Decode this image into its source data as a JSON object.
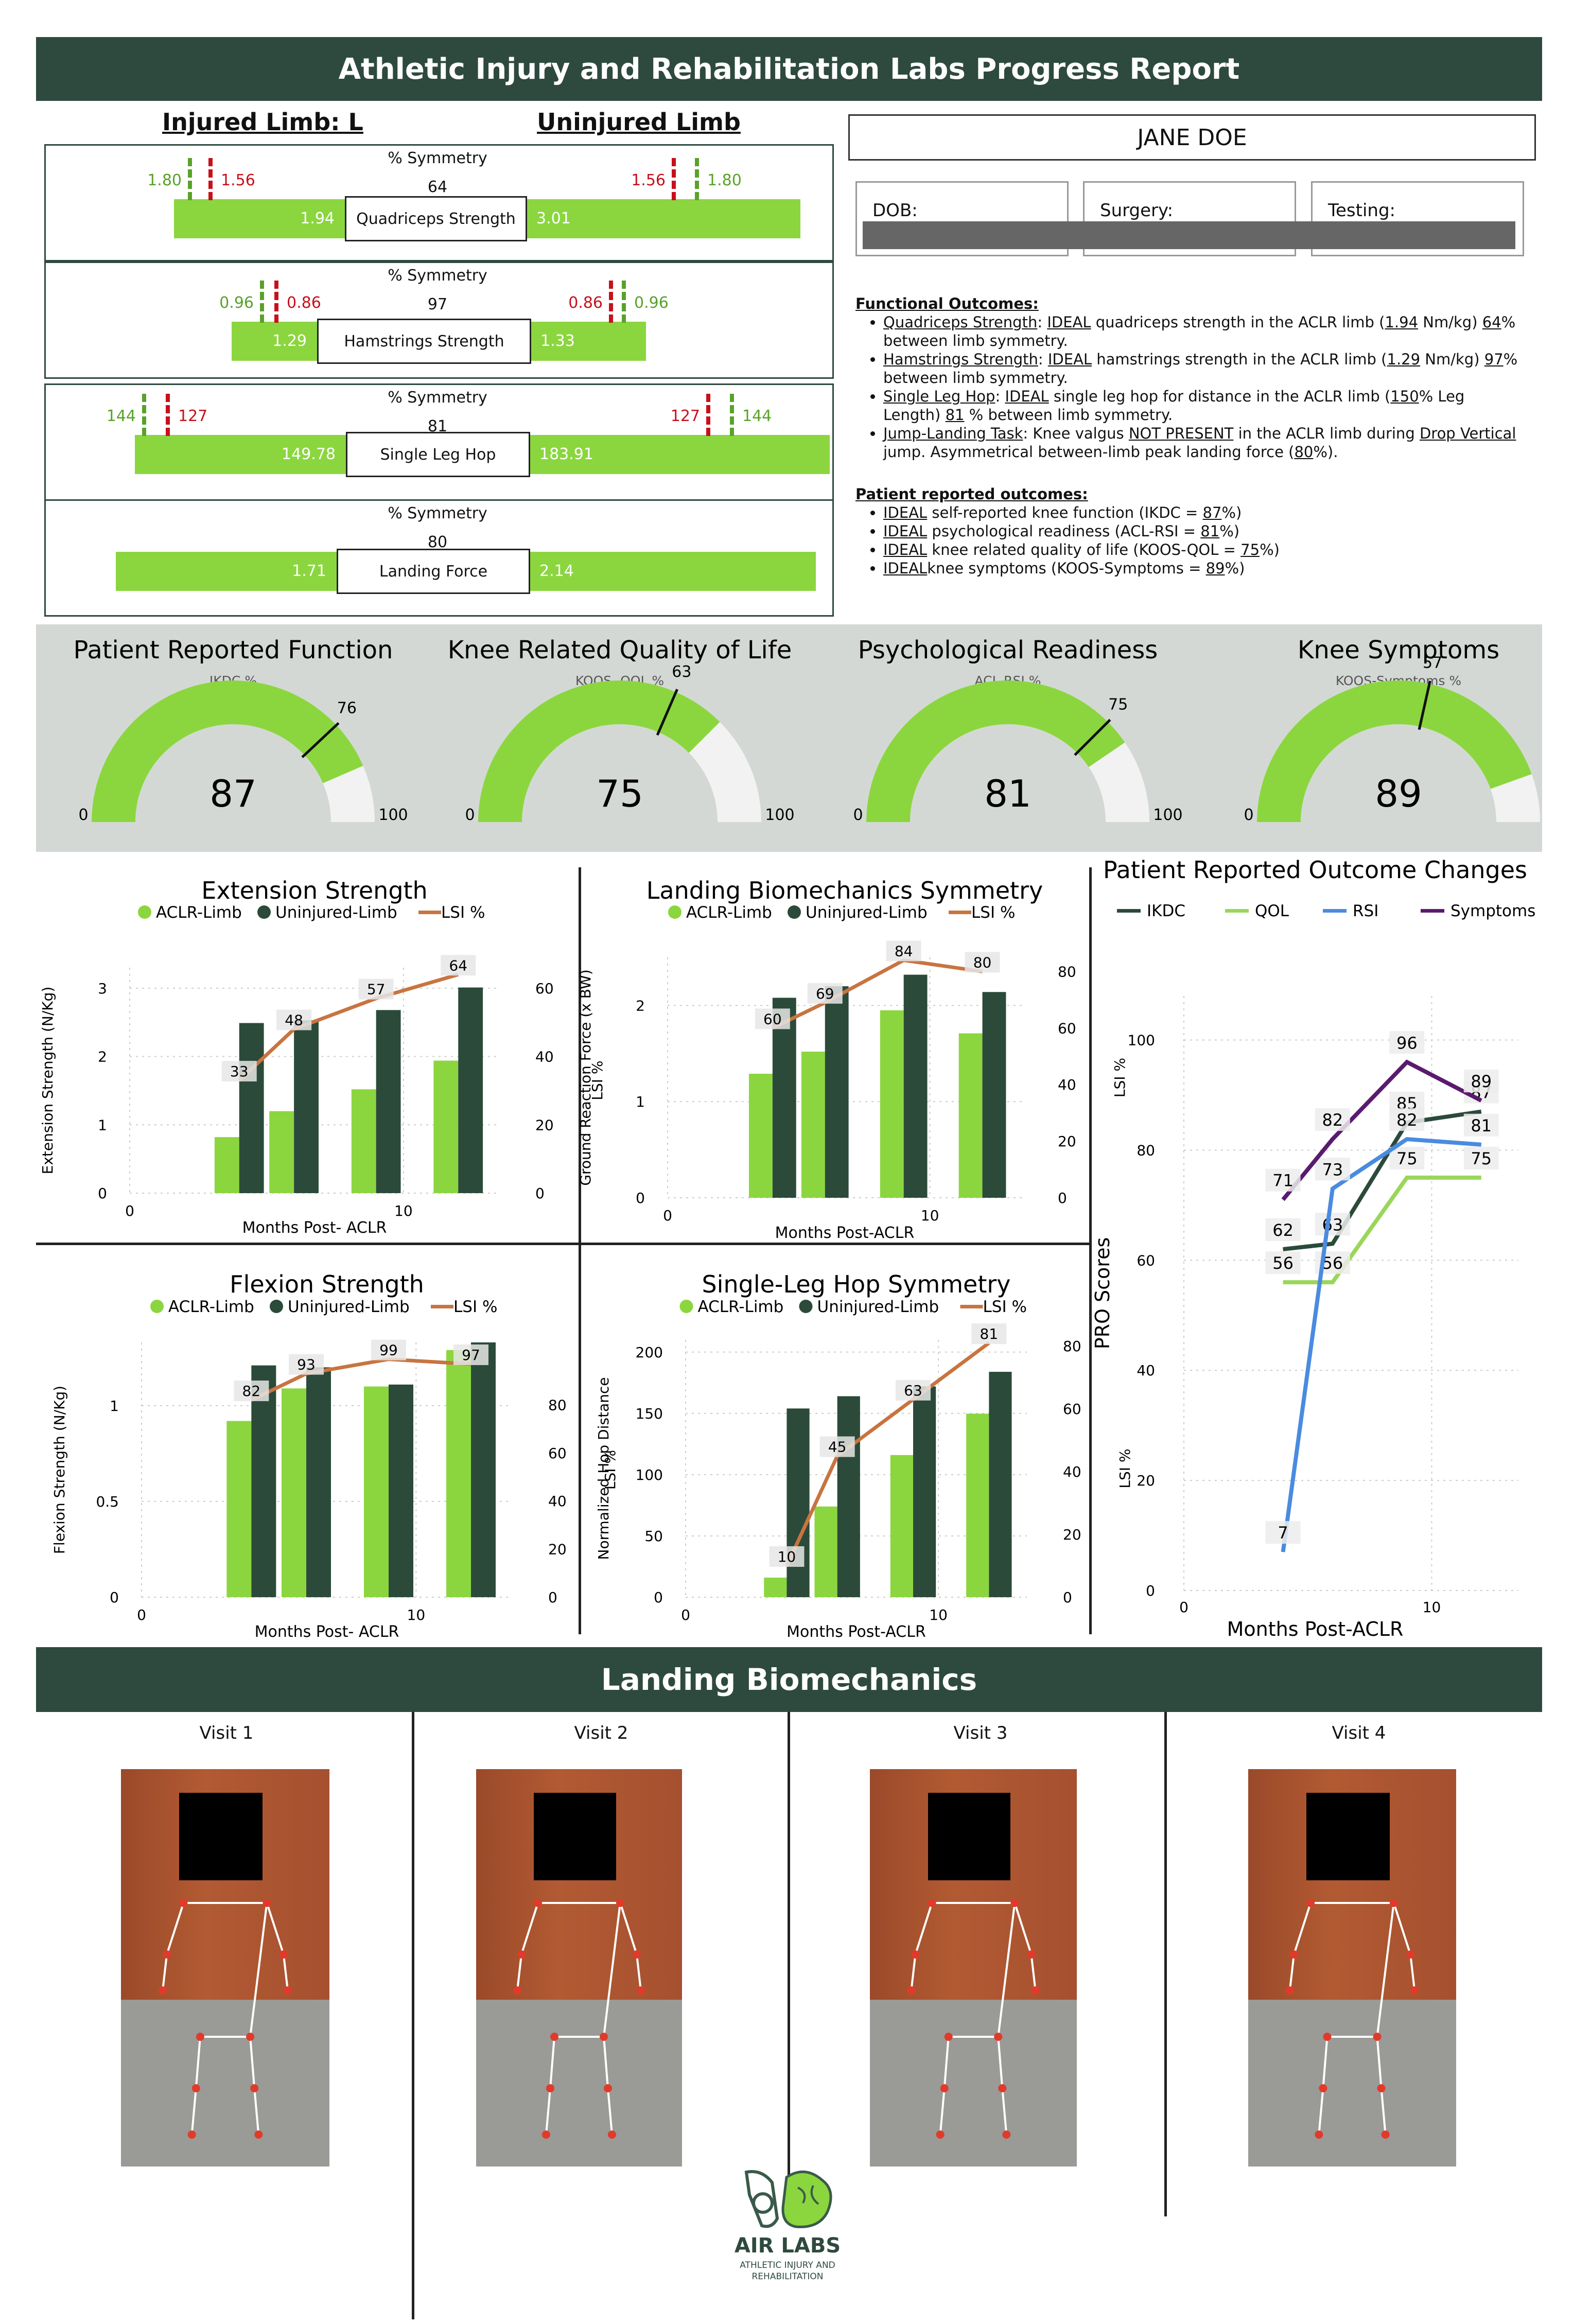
{
  "header": {
    "title": "Athletic Injury and Rehabilitation Labs Progress Report"
  },
  "limbs": {
    "injured": "Injured Limb: L",
    "uninjured": "Uninjured Limb"
  },
  "patient": {
    "name": "JANE DOE",
    "dob_label": "DOB:",
    "surgery_label": "Surgery:",
    "testing_label": "Testing:"
  },
  "symmetry": [
    {
      "test": "Quadriceps Strength",
      "caption": "% Symmetry",
      "lsi": "64",
      "injured_value": "1.94",
      "uninjured_value": "3.01",
      "left_green": "1.80",
      "left_red": "1.56",
      "right_red": "1.56",
      "right_green": "1.80"
    },
    {
      "test": "Hamstrings Strength",
      "caption": "% Symmetry",
      "lsi": "97",
      "injured_value": "1.29",
      "uninjured_value": "1.33",
      "left_green": "0.96",
      "left_red": "0.86",
      "right_red": "0.86",
      "right_green": "0.96"
    },
    {
      "test": "Single Leg Hop",
      "caption": "% Symmetry",
      "lsi": "81",
      "injured_value": "149.78",
      "uninjured_value": "183.91",
      "left_green": "144",
      "left_red": "127",
      "right_red": "127",
      "right_green": "144"
    },
    {
      "test": "Landing Force",
      "caption": "% Symmetry",
      "lsi": "80",
      "injured_value": "1.71",
      "uninjured_value": "2.14"
    }
  ],
  "functional_outcomes": {
    "heading": "Functional Outcomes:",
    "items": [
      [
        "Quadriceps Strength",
        ": ",
        "IDEAL",
        " quadriceps strength in the ACLR limb (",
        "1.94",
        " Nm/kg) ",
        "64",
        "% between limb symmetry."
      ],
      [
        "Hamstrings Strength",
        ": ",
        "IDEAL",
        " hamstrings strength in the ACLR limb (",
        "1.29",
        " Nm/kg) ",
        "97",
        "% between limb symmetry."
      ],
      [
        "Single Leg Hop",
        ": ",
        "IDEAL",
        " single leg hop for distance in the ACLR limb (",
        "150",
        "% Leg Length) ",
        "81",
        " % between limb symmetry."
      ],
      [
        "Jump-Landing Task",
        ": Knee valgus ",
        "NOT PRESENT",
        " in the ACLR limb during ",
        "Drop Vertical",
        " jump. Asymmetrical between-limb peak landing force (",
        "80",
        "%)."
      ]
    ]
  },
  "patient_outcomes": {
    "heading": "Patient reported outcomes:",
    "items": [
      [
        "IDEAL",
        " self-reported knee function (IKDC = ",
        "87",
        "%)"
      ],
      [
        "IDEAL",
        " psychological readiness (ACL-RSI = ",
        "81",
        "%)"
      ],
      [
        "IDEAL",
        " knee related quality of life (KOOS-QOL = ",
        "75",
        "%)"
      ],
      [
        "IDEAL",
        "knee symptoms (KOOS-Symptoms = ",
        "89",
        "%)"
      ]
    ]
  },
  "gauges": [
    {
      "title": "Patient Reported Function",
      "subtitle": "IKDC %",
      "value": 87,
      "target": 76,
      "min": "0",
      "max": "100"
    },
    {
      "title": "Knee Related Quality of Life",
      "subtitle": "KOOS- QOL %",
      "value": 75,
      "target": 63,
      "min": "0",
      "max": "100"
    },
    {
      "title": "Psychological Readiness",
      "subtitle": "ACL-RSI %",
      "value": 81,
      "target": 75,
      "min": "0",
      "max": "100"
    },
    {
      "title": "Knee Symptoms",
      "subtitle": "KOOS-Symptoms %",
      "value": 89,
      "target": 57,
      "min": "0",
      "max": "100"
    }
  ],
  "colors": {
    "aclr": "#8bd63f",
    "uninjured": "#2b4a3a",
    "lsi": "#c87440",
    "banner": "#2e4a3e",
    "red": "#c8101b",
    "ikdc": "#2b4a3a",
    "qol": "#9ad65a",
    "rsi": "#4a8be0",
    "symptoms": "#5a1a6e"
  },
  "chart_data": [
    {
      "type": "bar",
      "title": "Extension Strength",
      "xlabel": "Months Post- ACLR",
      "ylabel": "Extension Strength (N/Kg)",
      "y2label": "LSI %",
      "legend": [
        "ACLR-Limb",
        "Uninjured-Limb",
        "LSI %"
      ],
      "x": [
        4,
        6,
        9,
        12
      ],
      "xlim": [
        0,
        13.5
      ],
      "xticks": [
        0,
        10
      ],
      "ylim": [
        0,
        3.3
      ],
      "yticks": [
        0,
        1,
        2,
        3
      ],
      "y2lim": [
        0,
        66
      ],
      "y2ticks": [
        0,
        20,
        40,
        60
      ],
      "series": [
        {
          "name": "ACLR-Limb",
          "values": [
            0.82,
            1.2,
            1.52,
            1.94
          ]
        },
        {
          "name": "Uninjured-Limb",
          "values": [
            2.49,
            2.53,
            2.68,
            3.01
          ]
        },
        {
          "name": "LSI %",
          "values": [
            33,
            48,
            57,
            64
          ]
        }
      ]
    },
    {
      "type": "bar",
      "title": "Landing Biomechanics Symmetry",
      "xlabel": "Months Post-ACLR",
      "ylabel": "Ground Reaction Force (x BW)",
      "y2label": "LSI %",
      "legend": [
        "ACLR-Limb",
        "Uninjured-Limb",
        "LSI %"
      ],
      "x": [
        4,
        6,
        9,
        12
      ],
      "xlim": [
        0,
        13.5
      ],
      "xticks": [
        0,
        10
      ],
      "ylim": [
        0,
        2.5
      ],
      "yticks": [
        0,
        1,
        2
      ],
      "y2lim": [
        0,
        85
      ],
      "y2ticks": [
        0,
        20,
        40,
        60,
        80
      ],
      "series": [
        {
          "name": "ACLR-Limb",
          "values": [
            1.29,
            1.52,
            1.95,
            1.71
          ]
        },
        {
          "name": "Uninjured-Limb",
          "values": [
            2.08,
            2.2,
            2.32,
            2.14
          ]
        },
        {
          "name": "LSI %",
          "values": [
            60,
            69,
            84,
            80
          ]
        }
      ]
    },
    {
      "type": "bar",
      "title": "Flexion Strength",
      "xlabel": "Months Post- ACLR",
      "ylabel": "Flexion Strength (N/Kg)",
      "y2label": "LSI %",
      "legend": [
        "ACLR-Limb",
        "Uninjured-Limb",
        "LSI %"
      ],
      "x": [
        4,
        6,
        9,
        12
      ],
      "xlim": [
        0,
        13.5
      ],
      "xticks": [
        0,
        10
      ],
      "ylim": [
        0,
        1.33
      ],
      "yticks": [
        0.0,
        0.5,
        1.0
      ],
      "y2lim": [
        0,
        106
      ],
      "y2ticks": [
        0,
        20,
        40,
        60,
        80
      ],
      "series": [
        {
          "name": "ACLR-Limb",
          "values": [
            0.92,
            1.09,
            1.1,
            1.29
          ]
        },
        {
          "name": "Uninjured-Limb",
          "values": [
            1.21,
            1.2,
            1.11,
            1.33
          ]
        },
        {
          "name": "LSI %",
          "values": [
            82,
            93,
            99,
            97
          ]
        }
      ]
    },
    {
      "type": "bar",
      "title": "Single-Leg Hop Symmetry",
      "xlabel": "Months Post-ACLR",
      "ylabel": "Normalized Hop Distance",
      "y2label": "LSI %",
      "legend": [
        "ACLR-Limb",
        "Uninjured-Limb",
        "LSI %"
      ],
      "x": [
        4,
        6,
        9,
        12
      ],
      "xlim": [
        0,
        13.5
      ],
      "xticks": [
        0,
        10
      ],
      "ylim": [
        0,
        210
      ],
      "yticks": [
        0,
        50,
        100,
        150,
        200
      ],
      "y2lim": [
        0,
        82
      ],
      "y2ticks": [
        0,
        20,
        40,
        60,
        80
      ],
      "series": [
        {
          "name": "ACLR-Limb",
          "values": [
            16,
            74,
            116,
            149.78
          ]
        },
        {
          "name": "Uninjured-Limb",
          "values": [
            154,
            164,
            172,
            183.91
          ]
        },
        {
          "name": "LSI %",
          "values": [
            10,
            45,
            63,
            81
          ]
        }
      ]
    },
    {
      "type": "line",
      "title": "Patient Reported Outcome Changes",
      "xlabel": "Months Post-ACLR",
      "ylabel": "PRO Scores",
      "legend": [
        "IKDC",
        "QOL",
        "RSI",
        "Symptoms"
      ],
      "x": [
        4,
        6,
        9,
        12
      ],
      "xlim": [
        0,
        13.5
      ],
      "xticks": [
        0,
        10
      ],
      "ylim": [
        0,
        108
      ],
      "yticks": [
        0,
        20,
        40,
        60,
        80,
        100
      ],
      "series": [
        {
          "name": "IKDC",
          "values": [
            62,
            63,
            85,
            87
          ]
        },
        {
          "name": "QOL",
          "values": [
            56,
            56,
            75,
            75
          ]
        },
        {
          "name": "RSI",
          "values": [
            7,
            73,
            82,
            81
          ]
        },
        {
          "name": "Symptoms",
          "values": [
            71,
            82,
            96,
            89
          ]
        }
      ]
    }
  ],
  "landing": {
    "title": "Landing Biomechanics",
    "visits": [
      "Visit 1",
      "Visit 2",
      "Visit 3",
      "Visit 4"
    ]
  },
  "logo": {
    "name": "AIR LABS",
    "line1": "ATHLETIC INJURY AND",
    "line2": "REHABILITATION"
  }
}
